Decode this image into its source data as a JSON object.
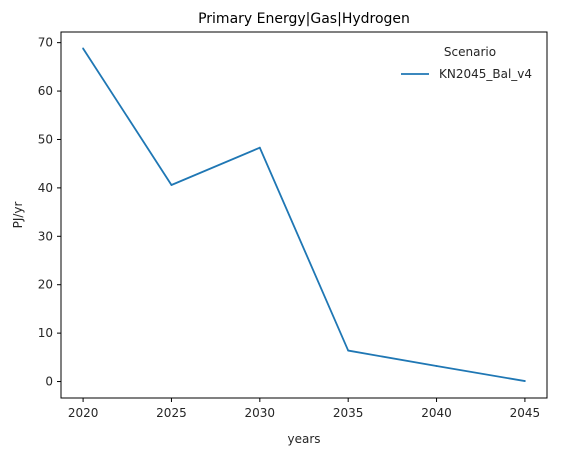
{
  "chart_data": {
    "type": "line",
    "title": "Primary Energy|Gas|Hydrogen",
    "xlabel": "years",
    "ylabel": "PJ/yr",
    "x": [
      2020,
      2025,
      2030,
      2035,
      2040,
      2045
    ],
    "series": [
      {
        "name": "KN2045_Bal_v4",
        "color": "#1f77b4",
        "values": [
          68.8,
          40.6,
          48.3,
          6.4,
          3.2,
          0.1
        ]
      }
    ],
    "xticks": [
      2020,
      2025,
      2030,
      2035,
      2040,
      2045
    ],
    "yticks": [
      0,
      10,
      20,
      30,
      40,
      50,
      60,
      70
    ],
    "xlim": [
      2018.75,
      2046.25
    ],
    "ylim": [
      -3.4,
      72.2
    ],
    "legend": {
      "title": "Scenario",
      "position": "top-right"
    },
    "grid": false
  }
}
